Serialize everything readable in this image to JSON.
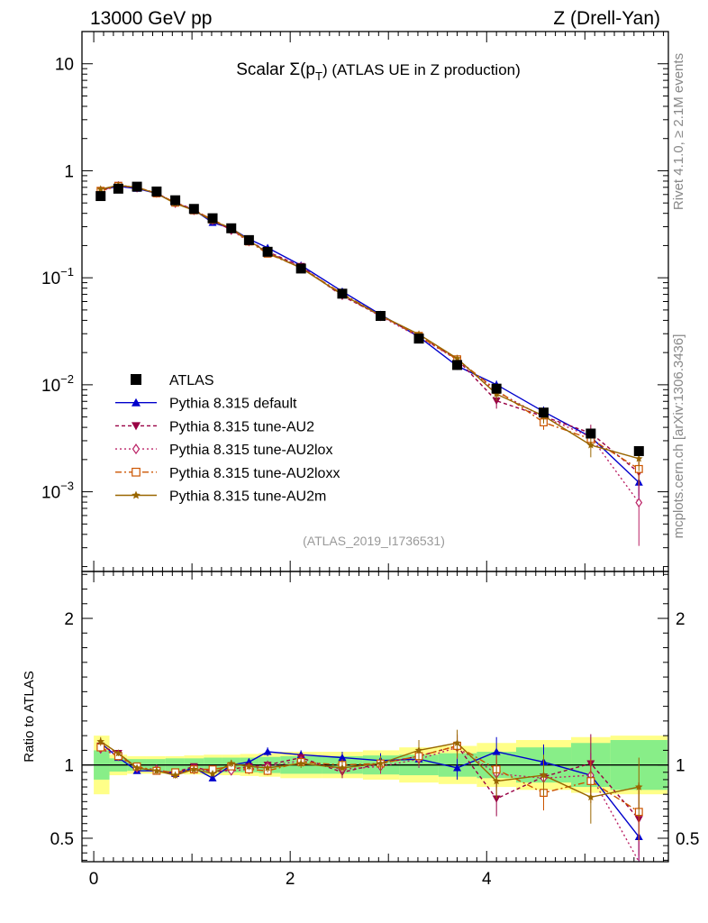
{
  "header": {
    "left": "13000 GeV pp",
    "right": "Z (Drell-Yan)"
  },
  "side": {
    "rivet": "Rivet 4.1.0, ≥ 2.1M events",
    "mcplots": "mcplots.cern.ch [arXiv:1306.3436]"
  },
  "chart_data": {
    "type": "line",
    "title": "Scalar Σ(pT) (ATLAS UE in Z production)",
    "title_parts": {
      "pre": "Scalar Σ(p",
      "sub": "T",
      "post": ") (ATLAS UE in Z production)"
    },
    "analysis": "(ATLAS_2019_I1736531)",
    "xlabel": "",
    "ylabel_main": "",
    "ylabel_ratio": "Ratio to ATLAS",
    "xlim": [
      -0.12,
      5.85
    ],
    "ylim_main": [
      0.00018,
      20
    ],
    "ylim_ratio": [
      0.34,
      2.32
    ],
    "y_log": true,
    "x_ticks": [
      "0",
      "2",
      "4"
    ],
    "x_tick_values": [
      0,
      2,
      4
    ],
    "main_y_tick_labels": [
      {
        "v": 10,
        "b": "10",
        "e": ""
      },
      {
        "v": 1,
        "b": "1",
        "e": ""
      },
      {
        "v": 0.1,
        "b": "10",
        "e": "−1"
      },
      {
        "v": 0.01,
        "b": "10",
        "e": "−2"
      },
      {
        "v": 0.001,
        "b": "10",
        "e": "−3"
      }
    ],
    "ratio_y_ticks": [
      "0.5",
      "1",
      "2"
    ],
    "ratio_y_tick_values": [
      0.5,
      1,
      2
    ],
    "x": [
      0.07,
      0.25,
      0.44,
      0.64,
      0.83,
      1.02,
      1.21,
      1.4,
      1.58,
      1.77,
      2.11,
      2.53,
      2.92,
      3.31,
      3.7,
      4.1,
      4.58,
      5.06,
      5.55
    ],
    "band_edges": [
      0.0,
      0.16,
      0.34,
      0.54,
      0.73,
      0.92,
      1.12,
      1.31,
      1.49,
      1.68,
      1.9,
      2.32,
      2.74,
      3.11,
      3.51,
      3.9,
      4.3,
      4.86,
      5.26,
      5.84
    ],
    "band_green": [
      0.1,
      0.045,
      0.04,
      0.04,
      0.045,
      0.045,
      0.05,
      0.05,
      0.05,
      0.055,
      0.06,
      0.06,
      0.065,
      0.07,
      0.08,
      0.09,
      0.12,
      0.15,
      0.17
    ],
    "band_yellow": [
      0.2,
      0.07,
      0.06,
      0.06,
      0.06,
      0.065,
      0.07,
      0.07,
      0.075,
      0.08,
      0.09,
      0.09,
      0.1,
      0.12,
      0.13,
      0.15,
      0.17,
      0.19,
      0.2
    ],
    "data": {
      "name": "ATLAS",
      "color": "#000000",
      "values": [
        0.58,
        0.68,
        0.71,
        0.64,
        0.53,
        0.44,
        0.36,
        0.29,
        0.225,
        0.175,
        0.122,
        0.071,
        0.044,
        0.027,
        0.0153,
        0.0092,
        0.0055,
        0.0035,
        0.0024
      ]
    },
    "series": [
      {
        "name": "Pythia 8.315 default",
        "color": "#0000cc",
        "dash": "",
        "marker": "tri-up",
        "ratio": [
          1.15,
          1.05,
          0.96,
          0.96,
          0.94,
          0.98,
          0.91,
          1.0,
          1.02,
          1.09,
          1.07,
          1.05,
          1.03,
          1.04,
          0.98,
          1.09,
          1.02,
          0.93,
          0.51
        ],
        "ratio_err": [
          0.03,
          0.02,
          0.02,
          0.02,
          0.02,
          0.02,
          0.02,
          0.025,
          0.025,
          0.03,
          0.03,
          0.04,
          0.05,
          0.06,
          0.08,
          0.1,
          0.12,
          0.15,
          0.2
        ]
      },
      {
        "name": "Pythia 8.315 tune-AU2",
        "color": "#990044",
        "dash": "4,3",
        "marker": "tri-down",
        "ratio": [
          1.13,
          1.08,
          0.98,
          0.96,
          0.95,
          0.99,
          0.95,
          0.97,
          0.99,
          1.0,
          1.05,
          0.95,
          1.01,
          1.06,
          1.13,
          0.77,
          0.92,
          1.01,
          0.63
        ],
        "ratio_err": [
          0.03,
          0.02,
          0.02,
          0.02,
          0.02,
          0.02,
          0.02,
          0.025,
          0.025,
          0.03,
          0.03,
          0.04,
          0.05,
          0.06,
          0.08,
          0.12,
          0.14,
          0.2,
          0.25
        ]
      },
      {
        "name": "Pythia 8.315 tune-AU2lox",
        "color": "#bb2266",
        "dash": "2,3",
        "marker": "diamond",
        "ratio": [
          1.11,
          1.06,
          0.98,
          0.97,
          0.94,
          0.97,
          0.96,
          0.96,
          0.97,
          0.99,
          1.03,
          0.97,
          0.99,
          1.04,
          1.12,
          0.94,
          0.91,
          0.93,
          0.33
        ],
        "ratio_err": [
          0.03,
          0.02,
          0.02,
          0.02,
          0.02,
          0.02,
          0.02,
          0.025,
          0.025,
          0.03,
          0.03,
          0.04,
          0.05,
          0.06,
          0.08,
          0.1,
          0.12,
          0.15,
          0.2
        ]
      },
      {
        "name": "Pythia 8.315 tune-AU2loxx",
        "color": "#cc5500",
        "dash": "7,3,2,3",
        "marker": "square",
        "ratio": [
          1.12,
          1.06,
          0.99,
          0.96,
          0.95,
          0.97,
          0.97,
          0.99,
          0.97,
          0.96,
          1.02,
          1.0,
          1.01,
          1.06,
          1.13,
          0.97,
          0.81,
          0.89,
          0.68
        ],
        "ratio_err": [
          0.03,
          0.02,
          0.02,
          0.02,
          0.02,
          0.02,
          0.02,
          0.025,
          0.025,
          0.03,
          0.03,
          0.04,
          0.05,
          0.06,
          0.08,
          0.1,
          0.12,
          0.15,
          0.2
        ]
      },
      {
        "name": "Pythia 8.315 tune-AU2m",
        "color": "#996600",
        "dash": "",
        "marker": "star",
        "ratio": [
          1.16,
          1.08,
          0.98,
          0.96,
          0.93,
          0.97,
          0.94,
          1.01,
          0.99,
          0.98,
          1.01,
          0.98,
          1.01,
          1.1,
          1.15,
          0.89,
          0.93,
          0.78,
          0.85
        ],
        "ratio_err": [
          0.03,
          0.02,
          0.02,
          0.02,
          0.02,
          0.02,
          0.02,
          0.025,
          0.025,
          0.03,
          0.03,
          0.04,
          0.05,
          0.07,
          0.09,
          0.12,
          0.14,
          0.18,
          0.2
        ]
      }
    ],
    "legend_position": "lower-left"
  }
}
